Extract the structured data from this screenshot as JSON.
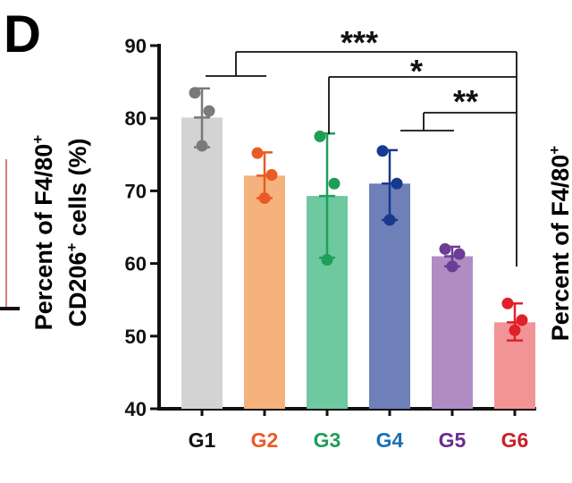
{
  "panel_label": "D",
  "neighbor_panel_label": "Percent of F4/80",
  "neighbor_panel_sup": "+",
  "chart_data": {
    "type": "bar",
    "categories": [
      "G1",
      "G2",
      "G3",
      "G4",
      "G5",
      "G6"
    ],
    "values": [
      80.1,
      72.1,
      69.3,
      71.0,
      61.0,
      51.9
    ],
    "error_low": [
      76.0,
      69.0,
      60.8,
      66.0,
      59.6,
      49.4
    ],
    "error_high": [
      84.1,
      75.3,
      77.9,
      75.6,
      62.3,
      54.5
    ],
    "points": [
      [
        83.5,
        81.0,
        76.2
      ],
      [
        75.2,
        72.2,
        69.0
      ],
      [
        77.5,
        71.0,
        60.5
      ],
      [
        75.5,
        71.0,
        66.0
      ],
      [
        62.0,
        61.3,
        59.6
      ],
      [
        54.5,
        52.2,
        50.8
      ]
    ],
    "bar_colors": [
      "#d3d3d3",
      "#f5b27c",
      "#6ec8a0",
      "#6f7fb8",
      "#b08cc3",
      "#f29496"
    ],
    "point_colors": [
      "#7a7a7a",
      "#ea5a24",
      "#1f9e5a",
      "#17398f",
      "#6a3d96",
      "#e0202a"
    ],
    "category_colors": [
      "#111111",
      "#ea5a24",
      "#1f9e5a",
      "#1a6fb5",
      "#6a2d8f",
      "#c8202a"
    ],
    "ylim": [
      40,
      90
    ],
    "yticks": [
      40,
      50,
      60,
      70,
      80,
      90
    ],
    "ylabel_line1": "Percent of F4/80",
    "ylabel_line1_sup": "+",
    "ylabel_line2_a": "CD206",
    "ylabel_line2_sup": "+",
    "ylabel_line2_b": " cells (%)",
    "significance": [
      {
        "label": "***",
        "from": "G1",
        "to": "G6"
      },
      {
        "label": "*",
        "from": "G3",
        "to": "G6"
      },
      {
        "label": "**",
        "from": "G4-G5",
        "to": "G6"
      }
    ]
  }
}
